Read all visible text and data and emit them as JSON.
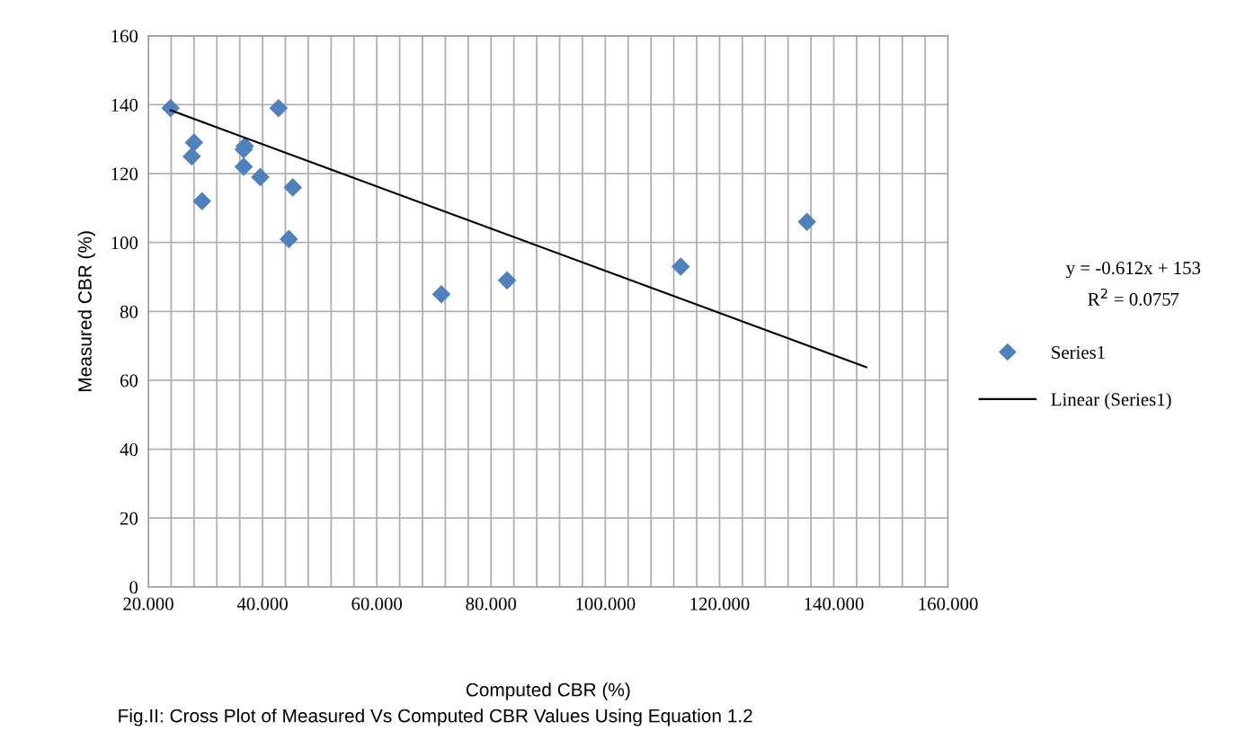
{
  "chart_data": {
    "type": "scatter",
    "xlabel": "Computed CBR (%)",
    "ylabel": "Measured CBR (%)",
    "xlim": [
      20,
      160
    ],
    "ylim": [
      0,
      160
    ],
    "xticks": [
      {
        "value": 20,
        "label": "20.000"
      },
      {
        "value": 24,
        "label": null
      },
      {
        "value": 28,
        "label": null
      },
      {
        "value": 32,
        "label": null
      },
      {
        "value": 36,
        "label": null
      },
      {
        "value": 40,
        "label": "40.000"
      },
      {
        "value": 44,
        "label": null
      },
      {
        "value": 48,
        "label": null
      },
      {
        "value": 52,
        "label": null
      },
      {
        "value": 56,
        "label": null
      },
      {
        "value": 60,
        "label": "60.000"
      },
      {
        "value": 64,
        "label": null
      },
      {
        "value": 68,
        "label": null
      },
      {
        "value": 72,
        "label": null
      },
      {
        "value": 76,
        "label": null
      },
      {
        "value": 80,
        "label": "80.000"
      },
      {
        "value": 84,
        "label": null
      },
      {
        "value": 88,
        "label": null
      },
      {
        "value": 92,
        "label": null
      },
      {
        "value": 96,
        "label": null
      },
      {
        "value": 100,
        "label": "100.000"
      },
      {
        "value": 104,
        "label": null
      },
      {
        "value": 108,
        "label": null
      },
      {
        "value": 112,
        "label": null
      },
      {
        "value": 116,
        "label": null
      },
      {
        "value": 120,
        "label": "120.000"
      },
      {
        "value": 124,
        "label": null
      },
      {
        "value": 128,
        "label": null
      },
      {
        "value": 132,
        "label": null
      },
      {
        "value": 136,
        "label": null
      },
      {
        "value": 140,
        "label": "140.000"
      },
      {
        "value": 144,
        "label": null
      },
      {
        "value": 148,
        "label": null
      },
      {
        "value": 152,
        "label": null
      },
      {
        "value": 156,
        "label": null
      },
      {
        "value": 160,
        "label": "160.000"
      }
    ],
    "yticks": [
      0,
      20,
      40,
      60,
      80,
      100,
      120,
      140,
      160
    ],
    "grid": true,
    "legend": "right",
    "marker": "diamond",
    "series": [
      {
        "name": "Series1",
        "color": "#4f81bd",
        "x": [
          23.9,
          28.0,
          27.6,
          29.4,
          36.9,
          36.7,
          36.7,
          39.6,
          42.8,
          45.3,
          44.6,
          71.3,
          82.8,
          113.2,
          135.3
        ],
        "values": [
          139,
          129,
          125,
          112,
          128,
          127,
          122,
          119,
          139,
          116,
          101,
          85,
          89,
          93,
          106
        ]
      },
      {
        "name": "Linear (Series1)",
        "type": "line",
        "color": "#000000",
        "marker": "none",
        "line_style": "solid",
        "x": [
          23.9,
          145.7
        ],
        "values": [
          138.4,
          63.8
        ]
      }
    ],
    "annotations": [
      "y = -0.612x + 153",
      "R$^{2}$ = 0.0757",
      "Fig.II: Cross Plot of Measured Vs Computed CBR Values Using Equation 1.2"
    ]
  }
}
